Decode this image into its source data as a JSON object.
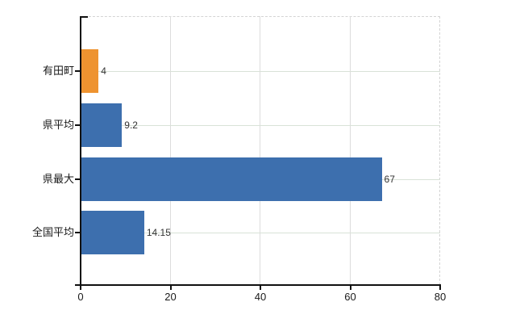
{
  "chart_data": {
    "type": "bar",
    "orientation": "horizontal",
    "title": "",
    "xlabel": "",
    "ylabel": "",
    "categories": [
      "有田町",
      "県平均",
      "県最大",
      "全国平均"
    ],
    "values": [
      4,
      9.2,
      67,
      14.15
    ],
    "value_labels": [
      "4",
      "9.2",
      "67",
      "14.15"
    ],
    "bar_colors": [
      "#EE9330",
      "#3D6FAE",
      "#3D6FAE",
      "#3D6FAE"
    ],
    "xlim": [
      0,
      80
    ],
    "xticks": [
      0,
      20,
      40,
      60,
      80
    ],
    "xtick_labels": [
      "0",
      "20",
      "40",
      "60",
      "80"
    ],
    "grid": true,
    "legend": false
  },
  "colors": {
    "highlight_orange": "#EE9330",
    "series_blue": "#3D6FAE",
    "axis": "#111111",
    "hgrid": "#d9e2d7",
    "vgrid": "#dcdcdc",
    "dashed_border": "#d4d4d4"
  }
}
